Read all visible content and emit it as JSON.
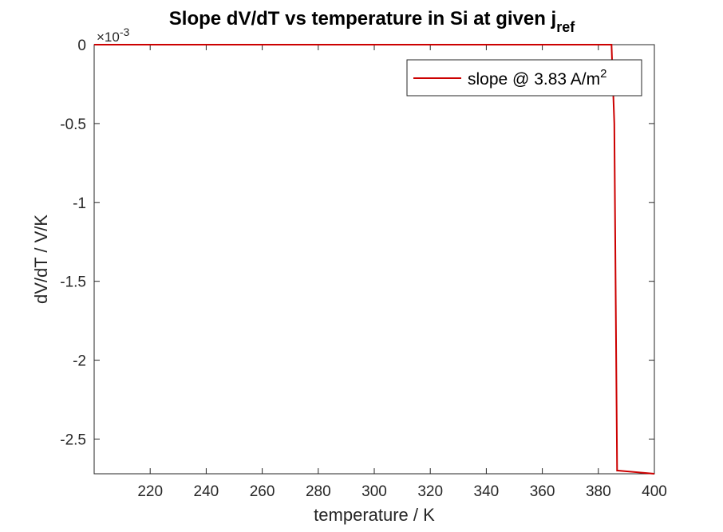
{
  "chart_data": {
    "type": "line",
    "title": "Slope dV/dT vs temperature in Si at given j",
    "title_subscript": "ref",
    "xlabel": "temperature / K",
    "ylabel": "dV/dT / V/K",
    "y_exponent_label": "×10",
    "y_exponent_power": "-3",
    "xlim": [
      200,
      400
    ],
    "ylim": [
      -2.72,
      0
    ],
    "y_scale_factor": 0.001,
    "x_ticks": [
      220,
      240,
      260,
      280,
      300,
      320,
      340,
      360,
      380,
      400
    ],
    "x_tick_labels": [
      "220",
      "240",
      "260",
      "280",
      "300",
      "320",
      "340",
      "360",
      "380",
      "400"
    ],
    "y_ticks": [
      0,
      -0.5,
      -1,
      -1.5,
      -2,
      -2.5
    ],
    "y_tick_labels": [
      "0",
      "-0.5",
      "-1",
      "-1.5",
      "-2",
      "-2.5"
    ],
    "legend_location": "top-right",
    "grid": false,
    "series": [
      {
        "name": "slope @ 3.83 A/m",
        "name_superscript": "2",
        "color": "#cc0000",
        "x": [
          200,
          384.7,
          385.7,
          386.7,
          387.0,
          400
        ],
        "y": [
          0,
          0,
          -0.5,
          -2.7,
          -2.7,
          -2.72
        ]
      }
    ]
  }
}
